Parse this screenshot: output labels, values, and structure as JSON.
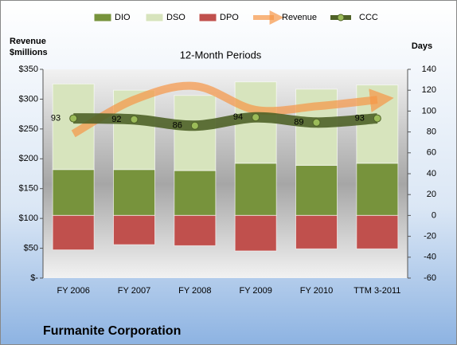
{
  "chart_data": {
    "type": "bar",
    "title": "12-Month Periods",
    "company": "Furmanite Corporation",
    "ylabel_lines": [
      "Revenue",
      "$millions"
    ],
    "y2label": "Days",
    "categories": [
      "FY 2006",
      "FY 2007",
      "FY 2008",
      "FY 2009",
      "FY 2010",
      "TTM 3-2011"
    ],
    "ylim": [
      0,
      350
    ],
    "yticks": [
      {
        "value": 0,
        "label": "$-"
      },
      {
        "value": 50,
        "label": "$50"
      },
      {
        "value": 100,
        "label": "$100"
      },
      {
        "value": 150,
        "label": "$150"
      },
      {
        "value": 200,
        "label": "$200"
      },
      {
        "value": 250,
        "label": "$250"
      },
      {
        "value": 300,
        "label": "$300"
      },
      {
        "value": 350,
        "label": "$350"
      }
    ],
    "y2lim": [
      -60,
      140
    ],
    "y2ticks": [
      -60,
      -40,
      -20,
      0,
      20,
      40,
      60,
      80,
      100,
      120,
      140
    ],
    "series": [
      {
        "name": "DIO",
        "type": "bar",
        "axis": "y2",
        "color": "#77933c",
        "values": [
          44,
          44,
          43,
          50,
          48,
          50
        ]
      },
      {
        "name": "DSO",
        "type": "bar",
        "axis": "y2",
        "color": "#d7e4bd",
        "values": [
          82,
          76,
          72,
          78,
          73,
          75
        ]
      },
      {
        "name": "DPO",
        "type": "bar",
        "axis": "y2",
        "color": "#c0504d",
        "values": [
          -33,
          -28,
          -29,
          -34,
          -32,
          -32
        ]
      },
      {
        "name": "Revenue",
        "type": "arrow-line",
        "color": "#f79646",
        "values": [
          242,
          299,
          322,
          282,
          288,
          299
        ]
      },
      {
        "name": "CCC",
        "type": "line",
        "axis": "y2",
        "color": "#4f6228",
        "values": [
          93,
          92,
          86,
          94,
          89,
          93
        ]
      }
    ]
  }
}
